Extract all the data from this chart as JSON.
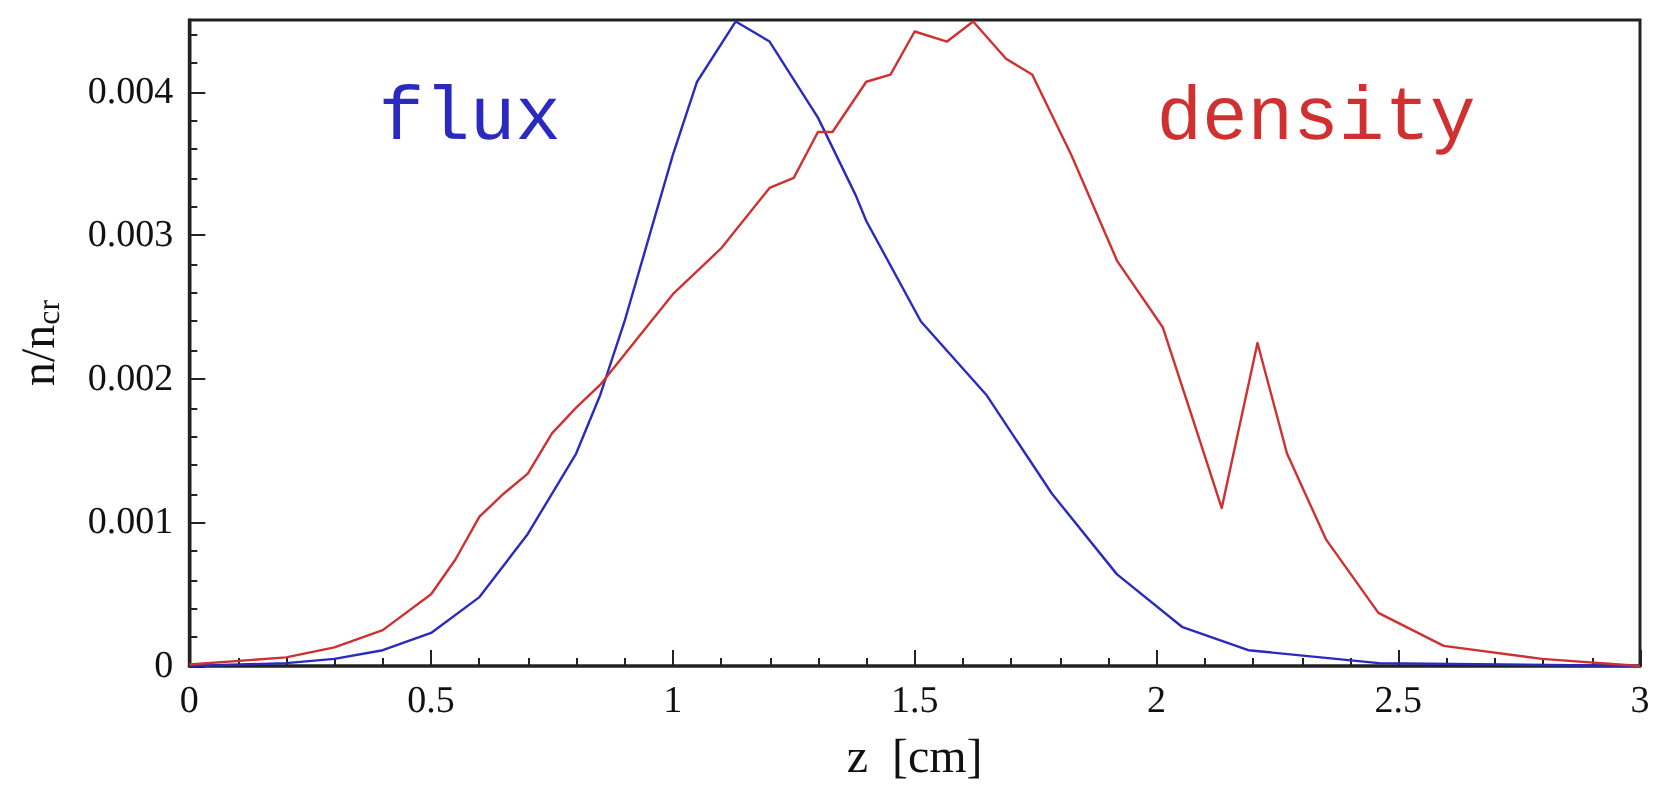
{
  "chart_data": {
    "type": "line",
    "xlabel": "z  [cm]",
    "ylabel": "n/n$_{cr}$",
    "xlim": [
      0,
      3
    ],
    "xticks": [
      0,
      0.5,
      1,
      1.5,
      2,
      2.5,
      3
    ],
    "ylim": [
      0,
      0.0045
    ],
    "yticks": [
      0,
      0.001,
      0.002,
      0.003,
      0.004
    ],
    "grid": false,
    "legend": false,
    "marker": "none",
    "line_style": "solid",
    "series": [
      {
        "name": "flux",
        "color": "#2a2ac0",
        "x": [
          0,
          0.2,
          0.3,
          0.4,
          0.5,
          0.6,
          0.7,
          0.8,
          0.85,
          0.9,
          1.0,
          1.05,
          1.13,
          1.2,
          1.3,
          1.378,
          1.4,
          1.513,
          1.648,
          1.784,
          1.918,
          2.054,
          2.19,
          2.46,
          3
        ],
        "values": [
          0,
          2e-05,
          5e-05,
          0.00011,
          0.00023,
          0.00048,
          0.00092,
          0.00148,
          0.00189,
          0.0024,
          0.00356,
          0.00407,
          0.00449,
          0.00435,
          0.00382,
          0.00328,
          0.0031,
          0.0024,
          0.00189,
          0.0012,
          0.00064,
          0.00027,
          0.00011,
          2e-05,
          0
        ]
      },
      {
        "name": "density",
        "color": "#d03030",
        "x": [
          0,
          0.2,
          0.3,
          0.4,
          0.5,
          0.55,
          0.6,
          0.65,
          0.7,
          0.75,
          0.8,
          0.85,
          0.9,
          1.0,
          1.1,
          1.2,
          1.25,
          1.3,
          1.33,
          1.4,
          1.45,
          1.5,
          1.567,
          1.621,
          1.689,
          1.743,
          1.824,
          1.919,
          2.013,
          2.081,
          2.135,
          2.209,
          2.27,
          2.351,
          2.459,
          2.594,
          2.797,
          3
        ],
        "values": [
          1e-05,
          6e-05,
          0.00013,
          0.00025,
          0.0005,
          0.00074,
          0.00104,
          0.0012,
          0.00134,
          0.00162,
          0.0018,
          0.00196,
          0.00217,
          0.00259,
          0.00291,
          0.00333,
          0.0034,
          0.00372,
          0.00372,
          0.00407,
          0.00412,
          0.00442,
          0.00435,
          0.00449,
          0.00423,
          0.00412,
          0.00356,
          0.00282,
          0.00236,
          0.00166,
          0.0011,
          0.00225,
          0.00148,
          0.00088,
          0.00037,
          0.00014,
          5e-05,
          0
        ]
      }
    ]
  }
}
